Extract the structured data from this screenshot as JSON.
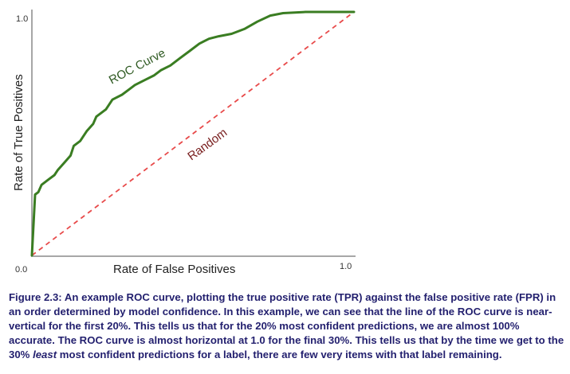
{
  "chart_data": {
    "type": "line",
    "title": "",
    "xlabel": "Rate of False Positives",
    "ylabel": "Rate of True Positives",
    "xlim": [
      0.0,
      1.0
    ],
    "ylim": [
      0.0,
      1.0
    ],
    "x_ticks": [
      "0.0",
      "1.0"
    ],
    "y_ticks": [
      "1.0"
    ],
    "grid": false,
    "legend": null,
    "annotations": [
      "ROC Curve",
      "Random"
    ],
    "series": [
      {
        "name": "ROC Curve",
        "color": "#3a7d22",
        "style": "solid",
        "x": [
          0.0,
          0.01,
          0.02,
          0.03,
          0.05,
          0.07,
          0.08,
          0.1,
          0.12,
          0.13,
          0.15,
          0.17,
          0.19,
          0.2,
          0.23,
          0.25,
          0.28,
          0.3,
          0.32,
          0.35,
          0.38,
          0.4,
          0.43,
          0.46,
          0.49,
          0.52,
          0.55,
          0.58,
          0.62,
          0.66,
          0.7,
          0.74,
          0.78,
          0.85,
          1.0
        ],
        "y": [
          0.0,
          0.25,
          0.26,
          0.29,
          0.31,
          0.33,
          0.35,
          0.38,
          0.41,
          0.45,
          0.47,
          0.51,
          0.54,
          0.57,
          0.6,
          0.64,
          0.66,
          0.68,
          0.7,
          0.72,
          0.74,
          0.76,
          0.78,
          0.81,
          0.84,
          0.87,
          0.89,
          0.9,
          0.91,
          0.93,
          0.96,
          0.985,
          0.995,
          1.0,
          1.0
        ]
      },
      {
        "name": "Random",
        "color": "#e84a4a",
        "style": "dashed",
        "x": [
          0.0,
          1.0
        ],
        "y": [
          0.0,
          1.0
        ]
      }
    ]
  },
  "caption": {
    "label": "Figure 2.3:",
    "part1": " An example ROC curve, plotting the true positive rate (TPR) against the false positive rate (FPR) in an order determined by model confidence. In this example, we can see that the line of the ROC curve is near-vertical for the first 20%. This tells us that for the 20% most confident predictions, we are almost 100% accurate. The ROC curve is almost horizontal at 1.0 for the final 30%. This tells us that by the time we get to the 30% ",
    "italic": "least",
    "part2": " most confident predictions for a label, there are few very items with that label remaining."
  }
}
